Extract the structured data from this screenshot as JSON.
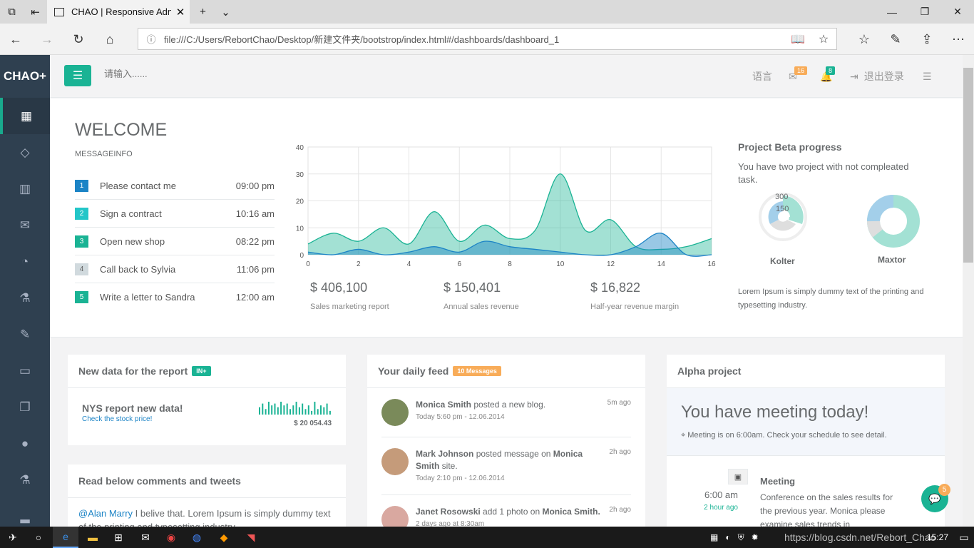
{
  "browser": {
    "tab_title": "CHAO | Responsive Adn",
    "url": "file:///C:/Users/RebortChao/Desktop/新建文件夹/bootstrop/index.html#/dashboards/dashboard_1"
  },
  "app": {
    "logo": "CHAO+",
    "search_placeholder": "请输入......",
    "language": "语言",
    "mail_count": "16",
    "bell_count": "8",
    "logout": "退出登录",
    "accent": "#1ab394"
  },
  "welcome": {
    "title": "WELCOME",
    "subtitle": "MESSAGEINFO",
    "tasks": [
      {
        "num": "1",
        "label": "Please contact me",
        "time": "09:00 pm",
        "color": "#1c84c6"
      },
      {
        "num": "2",
        "label": "Sign a contract",
        "time": "10:16 am",
        "color": "#23c6c8"
      },
      {
        "num": "3",
        "label": "Open new shop",
        "time": "08:22 pm",
        "color": "#1ab394"
      },
      {
        "num": "4",
        "label": "Call back to Sylvia",
        "time": "11:06 pm",
        "color": "#d1dade"
      },
      {
        "num": "5",
        "label": "Write a letter to Sandra",
        "time": "12:00 am",
        "color": "#1ab394"
      }
    ]
  },
  "stats": [
    {
      "value": "$ 406,100",
      "label": "Sales marketing report"
    },
    {
      "value": "$ 150,401",
      "label": "Annual sales revenue"
    },
    {
      "value": "$ 16,822",
      "label": "Half-year revenue margin"
    }
  ],
  "chart_data": {
    "type": "area",
    "ylim": [
      0,
      40
    ],
    "xlim": [
      0,
      16
    ],
    "y_ticks": [
      "0",
      "10",
      "20",
      "30",
      "40"
    ],
    "x_ticks": [
      "0",
      "2",
      "4",
      "6",
      "8",
      "10",
      "12",
      "14",
      "16"
    ],
    "series": [
      {
        "x": [
          0,
          1,
          2,
          3,
          4,
          5,
          6,
          7,
          8,
          9,
          10,
          11,
          12,
          13,
          14,
          15,
          16
        ],
        "values": [
          4,
          8,
          5,
          10,
          4,
          16,
          5,
          11,
          6,
          9,
          30,
          9,
          13,
          3,
          2,
          3,
          6
        ],
        "color": "#1ab394"
      },
      {
        "x": [
          0,
          1,
          2,
          3,
          4,
          5,
          6,
          7,
          8,
          9,
          10,
          11,
          12,
          13,
          14,
          15,
          16
        ],
        "values": [
          1,
          0,
          2,
          0,
          1,
          3,
          1,
          5,
          3,
          2,
          1,
          0,
          0,
          3,
          8,
          0,
          0
        ],
        "color": "#1c84c6"
      }
    ]
  },
  "project": {
    "title": "Project Beta progress",
    "desc": "You have two project with not compleated task.",
    "pie1": {
      "name": "Kolter",
      "label_a": "300",
      "label_b": "150"
    },
    "pie2": {
      "name": "Maxtor"
    },
    "lorem": "Lorem Ipsum is simply dummy text of the printing and typesetting industry."
  },
  "report": {
    "title": "New data for the report",
    "badge": "IN+",
    "heading": "NYS report new data!",
    "link": "Check the stock price!",
    "amount": "$ 20 054.43",
    "spark": [
      4,
      6,
      3,
      7,
      5,
      6,
      4,
      7,
      5,
      6,
      3,
      5,
      7,
      4,
      6,
      3,
      5,
      2,
      7,
      3,
      5,
      4,
      6,
      2
    ]
  },
  "comments": {
    "title": "Read below comments and tweets",
    "mention": "@Alan Marry",
    "text": " I belive that. Lorem Ipsum is simply dummy text of the printing and typesetting industry."
  },
  "feed": {
    "title": "Your daily feed",
    "badge": "10 Messages",
    "items": [
      {
        "name": "Monica Smith",
        "action": " posted a new blog.",
        "date": "Today 5:60 pm - 12.06.2014",
        "ago": "5m ago"
      },
      {
        "name": "Mark Johnson",
        "action": " posted message on ",
        "target": "Monica Smith",
        "after": " site.",
        "date": "Today 2:10 pm - 12.06.2014",
        "ago": "2h ago"
      },
      {
        "name": "Janet Rosowski",
        "action": " add 1 photo on ",
        "target": "Monica Smith.",
        "date": "2 days ago at 8:30am",
        "ago": "2h ago"
      }
    ]
  },
  "alpha": {
    "title": "Alpha project",
    "headline": "You have meeting today!",
    "note": "Meeting is on 6:00am. Check your schedule to see detail.",
    "time": "6:00 am",
    "ago": "2 hour ago",
    "event_title": "Meeting",
    "event_text": "Conference on the sales results for the previous year. Monica please examine sales trends in"
  },
  "chat_badge": "5",
  "taskbar": {
    "watermark": "https://blog.csdn.net/Rebort_Chao",
    "clock": "15:27"
  }
}
